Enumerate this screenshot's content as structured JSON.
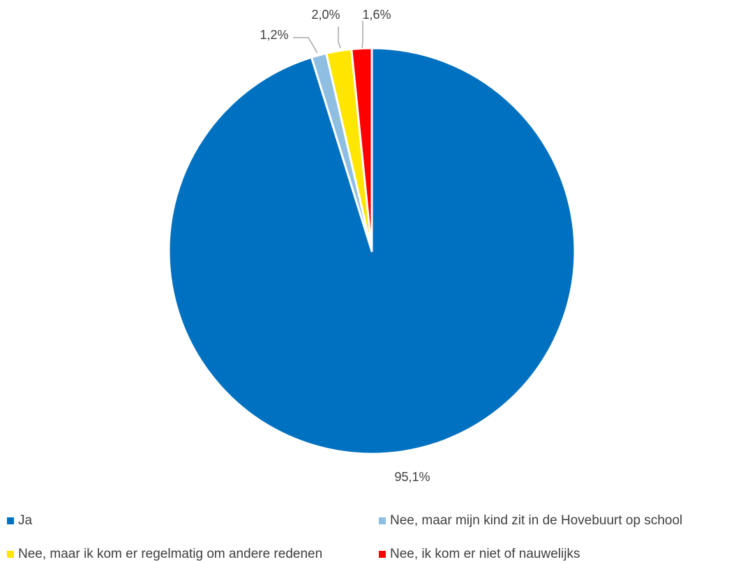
{
  "chart_data": {
    "type": "pie",
    "categories": [
      "Ja",
      "Nee, maar mijn kind zit in de Hovebuurt op school",
      "Nee, maar ik kom er regelmatig om andere redenen",
      "Nee, ik kom er niet of nauwelijks"
    ],
    "values": [
      95.1,
      1.2,
      2.0,
      1.6
    ],
    "value_labels": [
      "95,1%",
      "1,2%",
      "2,0%",
      "1,6%"
    ],
    "colors": [
      "#0070C0",
      "#8EBFE3",
      "#FFE600",
      "#FF0000"
    ],
    "start_angle": "12 o'clock, clockwise",
    "legend_position": "bottom"
  }
}
